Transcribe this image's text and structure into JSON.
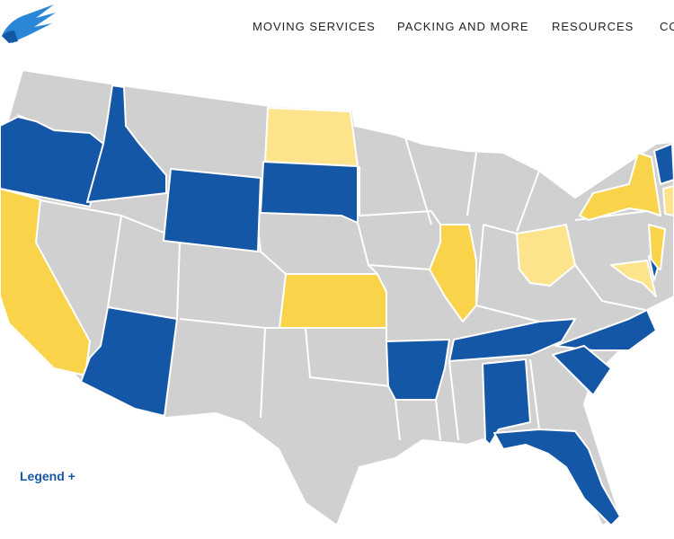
{
  "nav": {
    "items": [
      "MOVING SERVICES",
      "PACKING AND MORE",
      "RESOURCES",
      "CO"
    ]
  },
  "map": {
    "legend_toggle": "Legend +"
  }
}
